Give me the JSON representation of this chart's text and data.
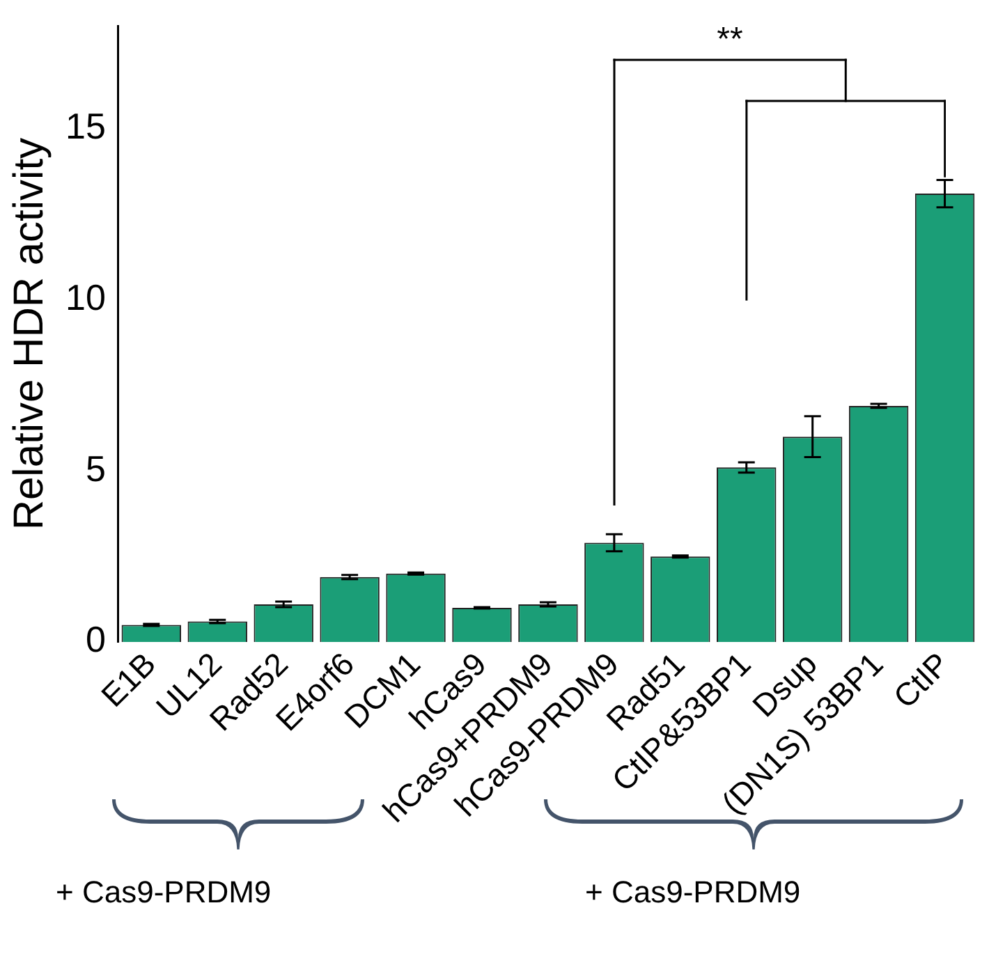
{
  "chart_data": {
    "type": "bar",
    "ylabel": "Relative HDR activity",
    "categories": [
      "E1B",
      "UL12",
      "Rad52",
      "E4orf6",
      "DCM1",
      "hCas9",
      "hCas9+PRDM9",
      "hCas9-PRDM9",
      "Rad51",
      "CtIP&53BP1",
      "Dsup",
      "(DN1S) 53BP1",
      "CtIP"
    ],
    "values": [
      0.5,
      0.6,
      1.1,
      1.9,
      2.0,
      1.0,
      1.1,
      2.9,
      2.5,
      5.1,
      6.0,
      6.9,
      13.1
    ],
    "errors": [
      0.03,
      0.05,
      0.08,
      0.06,
      0.03,
      0.02,
      0.06,
      0.25,
      0.03,
      0.15,
      0.6,
      0.06,
      0.4
    ],
    "color": "#1b9e77",
    "ylim": [
      0,
      18
    ],
    "yticks": [
      0,
      5,
      10,
      15
    ],
    "grid": false,
    "legend": false,
    "annotations": [
      "**",
      "+ Cas9-PRDM9",
      "+ Cas9-PRDM9"
    ]
  }
}
